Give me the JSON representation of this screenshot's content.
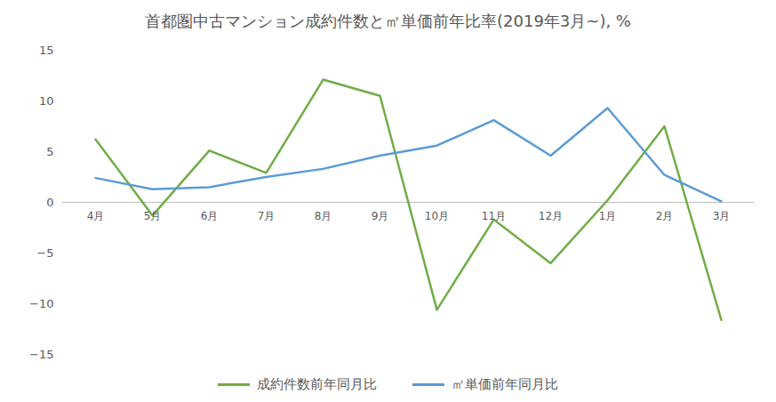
{
  "chart_data": {
    "type": "line",
    "title": "首都圏中古マンション成約件数と㎡単価前年比率(2019年3月~), %",
    "categories": [
      "4月",
      "5月",
      "6月",
      "7月",
      "8月",
      "9月",
      "10月",
      "11月",
      "12月",
      "1月",
      "2月",
      "3月"
    ],
    "series": [
      {
        "name": "成約件数前年同月比",
        "color": "#70ad47",
        "values": [
          6.2,
          -1.3,
          5.1,
          2.9,
          12.1,
          10.5,
          -10.6,
          -1.7,
          -6.0,
          0.2,
          7.5,
          -11.6
        ]
      },
      {
        "name": "㎡単価前年同月比",
        "color": "#5b9bd5",
        "values": [
          2.4,
          1.3,
          1.5,
          2.5,
          3.3,
          4.6,
          5.6,
          8.1,
          4.6,
          9.3,
          2.7,
          0.1
        ]
      }
    ],
    "ylim": [
      -15,
      15
    ],
    "yticks": [
      -15,
      -10,
      -5,
      0,
      5,
      10,
      15
    ],
    "grid": false,
    "legend": "bottom"
  }
}
